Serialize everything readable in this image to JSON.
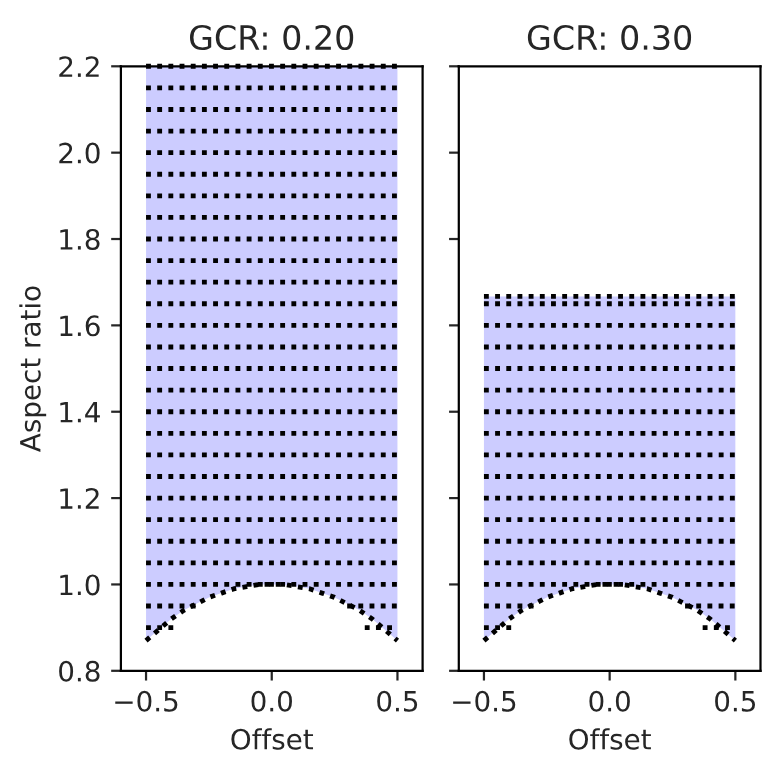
{
  "chart_data": [
    {
      "type": "line",
      "title": "GCR: 0.20",
      "xlabel": "Offset",
      "ylabel": "Aspect ratio",
      "xlim": [
        -0.6,
        0.6
      ],
      "xticks": [
        {
          "value": -0.5,
          "label": "−0.5"
        },
        {
          "value": 0,
          "label": "0.0"
        },
        {
          "value": 0.5,
          "label": "0.5"
        }
      ],
      "ylim": [
        0.8,
        2.2
      ],
      "yticks": [
        {
          "value": 0.8,
          "label": "0.8"
        },
        {
          "value": 1.0,
          "label": "1.0"
        },
        {
          "value": 1.2,
          "label": "1.2"
        },
        {
          "value": 1.4,
          "label": "1.4"
        },
        {
          "value": 1.6,
          "label": "1.6"
        },
        {
          "value": 1.8,
          "label": "1.8"
        },
        {
          "value": 2.0,
          "label": "2.0"
        },
        {
          "value": 2.2,
          "label": "2.2"
        }
      ],
      "grid": false,
      "legend": false,
      "line_style": "dotted",
      "series": [
        {
          "color": "#000000",
          "x": [
            -0.5,
            -0.45,
            -0.4,
            -0.35,
            -0.3,
            -0.25,
            -0.2,
            -0.15,
            -0.1,
            -0.05,
            0,
            0.05,
            0.1,
            0.15,
            0.2,
            0.25,
            0.3,
            0.35,
            0.4,
            0.45,
            0.5
          ],
          "values": [
            0.87,
            0.895,
            0.92,
            0.94,
            0.955,
            0.97,
            0.98,
            0.99,
            0.995,
            1.0,
            1.0,
            1.0,
            0.995,
            0.99,
            0.98,
            0.97,
            0.955,
            0.94,
            0.92,
            0.895,
            0.87
          ],
          "lower": [
            0.87,
            0.895,
            0.92,
            0.94,
            0.955,
            0.97,
            0.98,
            0.99,
            0.995,
            1.0,
            1.0,
            1.0,
            0.995,
            0.99,
            0.98,
            0.97,
            0.955,
            0.94,
            0.92,
            0.895,
            0.87
          ],
          "upper": [
            2.2,
            2.2,
            2.2,
            2.2,
            2.2,
            2.2,
            2.2,
            2.2,
            2.2,
            2.2,
            2.2,
            2.2,
            2.2,
            2.2,
            2.2,
            2.2,
            2.2,
            2.2,
            2.2,
            2.2,
            2.2
          ]
        },
        {
          "color": "#000000",
          "x": [
            -0.5,
            -0.37,
            0,
            0.37,
            0.5
          ],
          "values": [
            0.9,
            0.9,
            null,
            0.9,
            0.9
          ]
        },
        {
          "color": "#000000",
          "x": [
            -0.5,
            -0.3,
            0,
            0.3,
            0.5
          ],
          "values": [
            0.95,
            0.95,
            null,
            0.95,
            0.95
          ]
        },
        {
          "color": "#000000",
          "x": [
            -0.5,
            0.5
          ],
          "values": [
            1.0,
            1.0
          ]
        },
        {
          "color": "#000000",
          "x": [
            -0.5,
            0.5
          ],
          "values": [
            1.05,
            1.05
          ]
        },
        {
          "color": "#000000",
          "x": [
            -0.5,
            0.5
          ],
          "values": [
            1.1,
            1.1
          ]
        },
        {
          "color": "#000000",
          "x": [
            -0.5,
            0.5
          ],
          "values": [
            1.15,
            1.15
          ]
        },
        {
          "color": "#000000",
          "x": [
            -0.5,
            0.5
          ],
          "values": [
            1.2,
            1.2
          ]
        },
        {
          "color": "#000000",
          "x": [
            -0.5,
            0.5
          ],
          "values": [
            1.25,
            1.25
          ]
        },
        {
          "color": "#000000",
          "x": [
            -0.5,
            0.5
          ],
          "values": [
            1.3,
            1.3
          ]
        },
        {
          "color": "#000000",
          "x": [
            -0.5,
            0.5
          ],
          "values": [
            1.35,
            1.35
          ]
        },
        {
          "color": "#000000",
          "x": [
            -0.5,
            0.5
          ],
          "values": [
            1.4,
            1.4
          ]
        },
        {
          "color": "#000000",
          "x": [
            -0.5,
            0.5
          ],
          "values": [
            1.45,
            1.45
          ]
        },
        {
          "color": "#000000",
          "x": [
            -0.5,
            0.5
          ],
          "values": [
            1.5,
            1.5
          ]
        },
        {
          "color": "#000000",
          "x": [
            -0.5,
            0.5
          ],
          "values": [
            1.55,
            1.55
          ]
        },
        {
          "color": "#000000",
          "x": [
            -0.5,
            0.5
          ],
          "values": [
            1.6,
            1.6
          ]
        },
        {
          "color": "#000000",
          "x": [
            -0.5,
            0.5
          ],
          "values": [
            1.65,
            1.65
          ]
        },
        {
          "color": "#000000",
          "x": [
            -0.5,
            0.5
          ],
          "values": [
            1.7,
            1.7
          ]
        },
        {
          "color": "#000000",
          "x": [
            -0.5,
            0.5
          ],
          "values": [
            1.75,
            1.75
          ]
        },
        {
          "color": "#000000",
          "x": [
            -0.5,
            0.5
          ],
          "values": [
            1.8,
            1.8
          ]
        },
        {
          "color": "#000000",
          "x": [
            -0.5,
            0.5
          ],
          "values": [
            1.85,
            1.85
          ]
        },
        {
          "color": "#000000",
          "x": [
            -0.5,
            0.5
          ],
          "values": [
            1.9,
            1.9
          ]
        },
        {
          "color": "#000000",
          "x": [
            -0.5,
            0.5
          ],
          "values": [
            1.95,
            1.95
          ]
        },
        {
          "color": "#000000",
          "x": [
            -0.5,
            0.5
          ],
          "values": [
            2.0,
            2.0
          ]
        },
        {
          "color": "#000000",
          "x": [
            -0.5,
            0.5
          ],
          "values": [
            2.05,
            2.05
          ]
        },
        {
          "color": "#000000",
          "x": [
            -0.5,
            0.5
          ],
          "values": [
            2.1,
            2.1
          ]
        },
        {
          "color": "#000000",
          "x": [
            -0.5,
            0.5
          ],
          "values": [
            2.15,
            2.15
          ]
        },
        {
          "color": "#000000",
          "x": [
            -0.5,
            0.5
          ],
          "values": [
            2.2,
            2.2
          ]
        }
      ]
    },
    {
      "type": "line",
      "title": "GCR: 0.30",
      "xlabel": "Offset",
      "xlim": [
        -0.6,
        0.6
      ],
      "xticks": [
        {
          "value": -0.5,
          "label": "−0.5"
        },
        {
          "value": 0,
          "label": "0.0"
        },
        {
          "value": 0.5,
          "label": "0.5"
        }
      ],
      "ylim": [
        0.8,
        2.2
      ],
      "yticks": [
        0.8,
        1.0,
        1.2,
        1.4,
        1.6,
        1.8,
        2.0,
        2.2
      ],
      "tick_labels": "x",
      "grid": false,
      "legend": false,
      "line_style": "dotted",
      "series": [
        {
          "color": "#000000",
          "x": [
            -0.5,
            -0.45,
            -0.4,
            -0.35,
            -0.3,
            -0.25,
            -0.2,
            -0.15,
            -0.1,
            -0.05,
            0,
            0.05,
            0.1,
            0.15,
            0.2,
            0.25,
            0.3,
            0.35,
            0.4,
            0.45,
            0.5
          ],
          "values": [
            0.87,
            0.895,
            0.92,
            0.94,
            0.955,
            0.97,
            0.98,
            0.99,
            0.995,
            1.0,
            1.0,
            1.0,
            0.995,
            0.99,
            0.98,
            0.97,
            0.955,
            0.94,
            0.92,
            0.895,
            0.87
          ],
          "lower": [
            0.87,
            0.895,
            0.92,
            0.94,
            0.955,
            0.97,
            0.98,
            0.99,
            0.995,
            1.0,
            1.0,
            1.0,
            0.995,
            0.99,
            0.98,
            0.97,
            0.955,
            0.94,
            0.92,
            0.895,
            0.87
          ],
          "upper": [
            1.667,
            1.667,
            1.667,
            1.667,
            1.667,
            1.667,
            1.667,
            1.667,
            1.667,
            1.667,
            1.667,
            1.667,
            1.667,
            1.667,
            1.667,
            1.667,
            1.667,
            1.667,
            1.667,
            1.667,
            1.667
          ]
        },
        {
          "color": "#000000",
          "x": [
            -0.5,
            -0.37,
            0,
            0.37,
            0.5
          ],
          "values": [
            0.9,
            0.9,
            null,
            0.9,
            0.9
          ]
        },
        {
          "color": "#000000",
          "x": [
            -0.5,
            -0.3,
            0,
            0.3,
            0.5
          ],
          "values": [
            0.95,
            0.95,
            null,
            0.95,
            0.95
          ]
        },
        {
          "color": "#000000",
          "x": [
            -0.5,
            0.5
          ],
          "values": [
            1.0,
            1.0
          ]
        },
        {
          "color": "#000000",
          "x": [
            -0.5,
            0.5
          ],
          "values": [
            1.05,
            1.05
          ]
        },
        {
          "color": "#000000",
          "x": [
            -0.5,
            0.5
          ],
          "values": [
            1.1,
            1.1
          ]
        },
        {
          "color": "#000000",
          "x": [
            -0.5,
            0.5
          ],
          "values": [
            1.15,
            1.15
          ]
        },
        {
          "color": "#000000",
          "x": [
            -0.5,
            0.5
          ],
          "values": [
            1.2,
            1.2
          ]
        },
        {
          "color": "#000000",
          "x": [
            -0.5,
            0.5
          ],
          "values": [
            1.25,
            1.25
          ]
        },
        {
          "color": "#000000",
          "x": [
            -0.5,
            0.5
          ],
          "values": [
            1.3,
            1.3
          ]
        },
        {
          "color": "#000000",
          "x": [
            -0.5,
            0.5
          ],
          "values": [
            1.35,
            1.35
          ]
        },
        {
          "color": "#000000",
          "x": [
            -0.5,
            0.5
          ],
          "values": [
            1.4,
            1.4
          ]
        },
        {
          "color": "#000000",
          "x": [
            -0.5,
            0.5
          ],
          "values": [
            1.45,
            1.45
          ]
        },
        {
          "color": "#000000",
          "x": [
            -0.5,
            0.5
          ],
          "values": [
            1.5,
            1.5
          ]
        },
        {
          "color": "#000000",
          "x": [
            -0.5,
            0.5
          ],
          "values": [
            1.55,
            1.55
          ]
        },
        {
          "color": "#000000",
          "x": [
            -0.5,
            0.5
          ],
          "values": [
            1.6,
            1.6
          ]
        },
        {
          "color": "#000000",
          "x": [
            -0.5,
            0.5
          ],
          "values": [
            1.65,
            1.65
          ]
        },
        {
          "color": "#000000",
          "x": [
            -0.5,
            0.5
          ],
          "values": [
            1.667,
            1.667
          ]
        }
      ]
    }
  ]
}
